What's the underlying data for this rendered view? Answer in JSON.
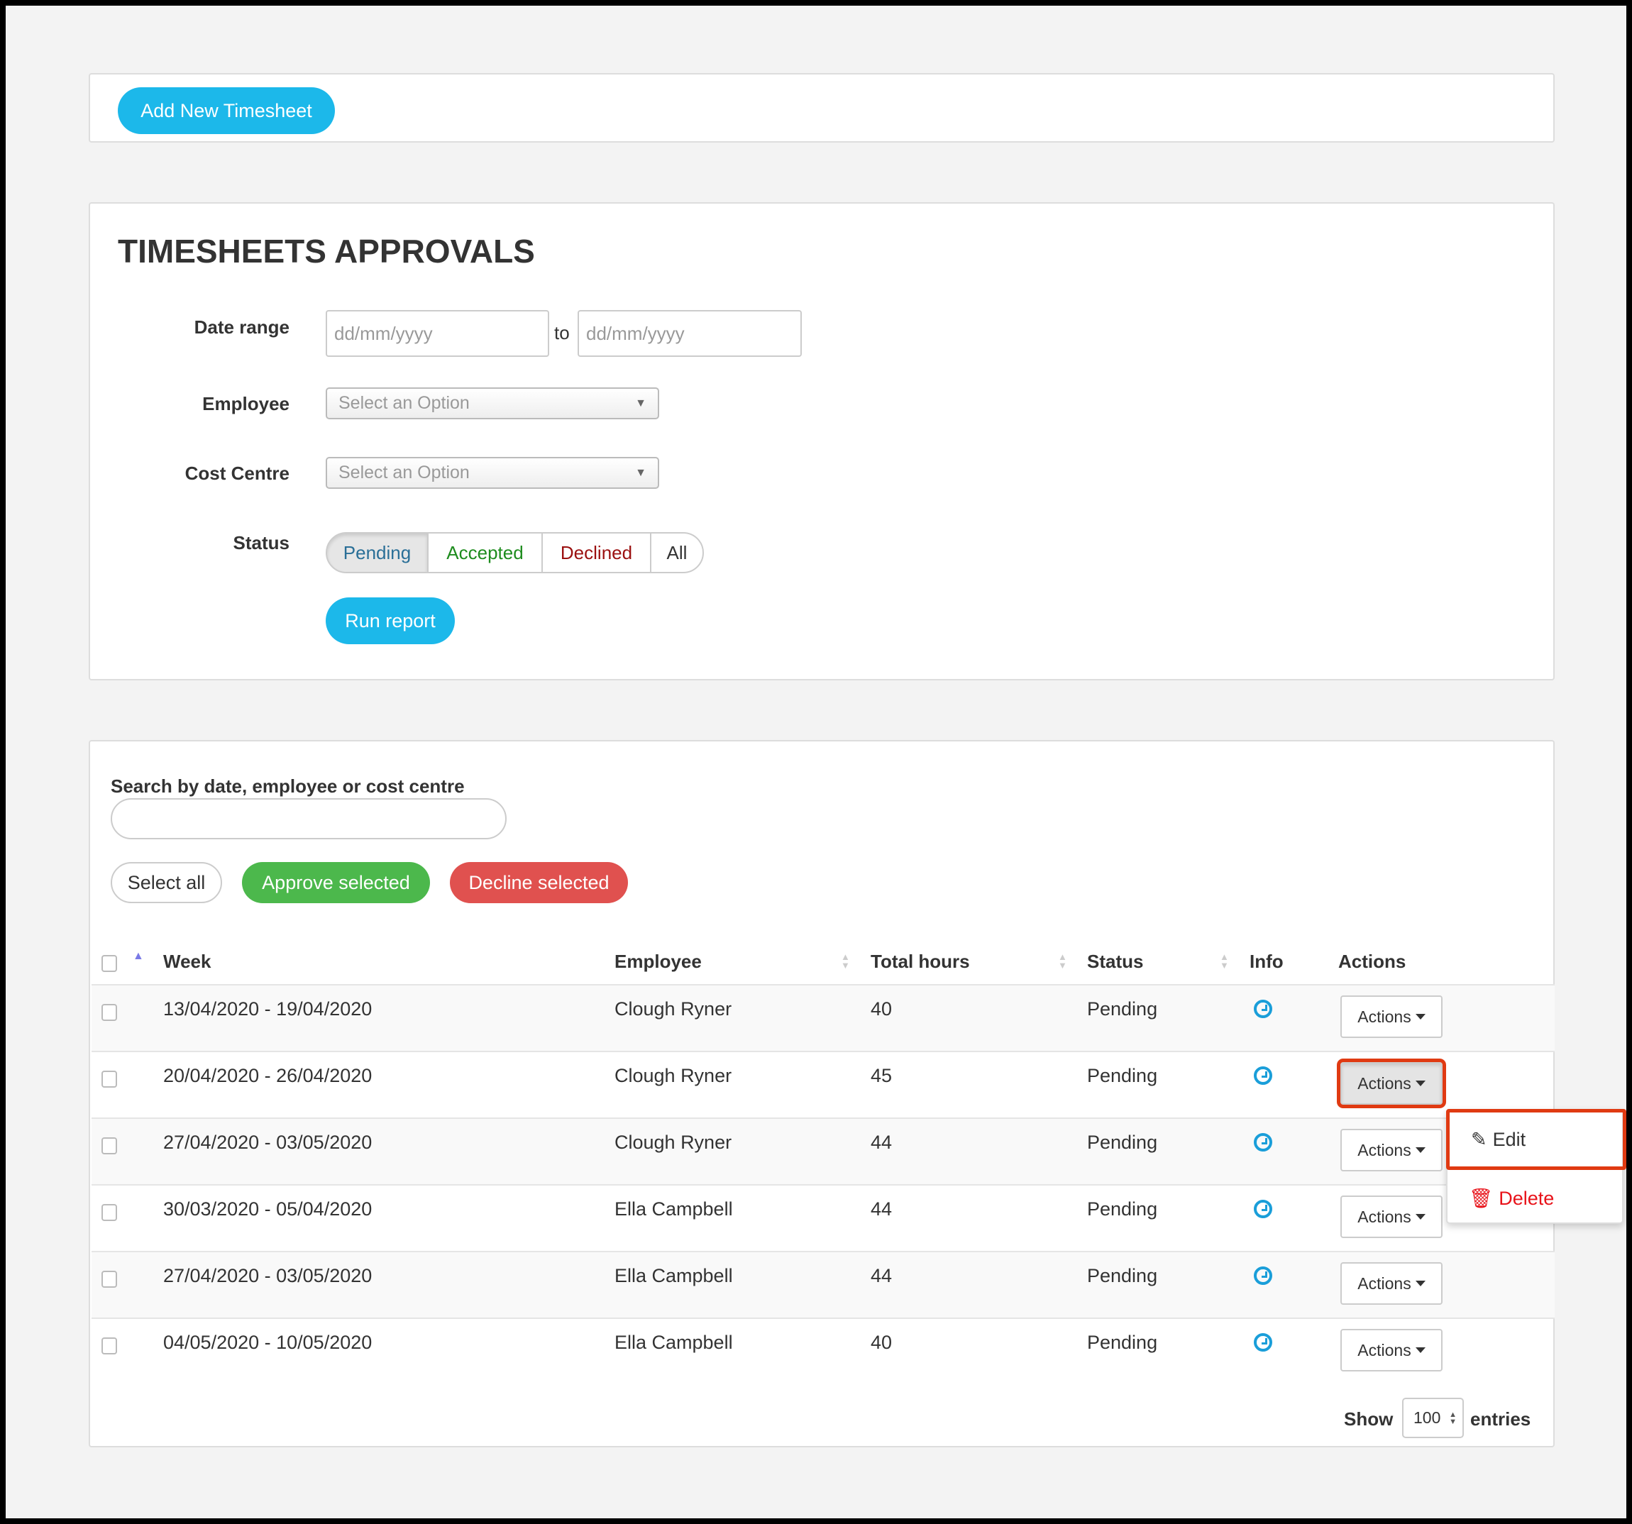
{
  "toolbar": {
    "add_label": "Add New Timesheet"
  },
  "filters": {
    "title": "TIMESHEETS APPROVALS",
    "date_range_label": "Date range",
    "date_from_placeholder": "dd/mm/yyyy",
    "to_label": "to",
    "date_to_placeholder": "dd/mm/yyyy",
    "employee_label": "Employee",
    "employee_value": "Select an Option",
    "cost_centre_label": "Cost Centre",
    "cost_centre_value": "Select an Option",
    "status_label": "Status",
    "status_options": [
      {
        "label": "Pending",
        "color": "#2a6f97"
      },
      {
        "label": "Accepted",
        "color": "#1e8c1e"
      },
      {
        "label": "Declined",
        "color": "#9b1010"
      },
      {
        "label": "All",
        "color": "#333333"
      }
    ],
    "selected_status": "Pending",
    "run_label": "Run report"
  },
  "results": {
    "search_label": "Search by date, employee or cost centre",
    "search_value": "",
    "select_all_label": "Select all",
    "approve_label": "Approve selected",
    "decline_label": "Decline selected",
    "columns": [
      "Week",
      "Employee",
      "Total hours",
      "Status",
      "Info",
      "Actions"
    ],
    "rows": [
      {
        "week": "13/04/2020 - 19/04/2020",
        "employee": "Clough Ryner",
        "hours": "40",
        "status": "Pending",
        "action": "Actions"
      },
      {
        "week": "20/04/2020 - 26/04/2020",
        "employee": "Clough Ryner",
        "hours": "45",
        "status": "Pending",
        "action": "Actions"
      },
      {
        "week": "27/04/2020 - 03/05/2020",
        "employee": "Clough Ryner",
        "hours": "44",
        "status": "Pending",
        "action": "Actions"
      },
      {
        "week": "30/03/2020 - 05/04/2020",
        "employee": "Ella Campbell",
        "hours": "44",
        "status": "Pending",
        "action": "Actions"
      },
      {
        "week": "27/04/2020 - 03/05/2020",
        "employee": "Ella Campbell",
        "hours": "44",
        "status": "Pending",
        "action": "Actions"
      },
      {
        "week": "04/05/2020 - 10/05/2020",
        "employee": "Ella Campbell",
        "hours": "40",
        "status": "Pending",
        "action": "Actions"
      }
    ],
    "menu": {
      "edit_label": "Edit",
      "delete_label": "Delete"
    },
    "show_label": "Show",
    "entries_value": "100",
    "entries_label": "entries"
  },
  "colors": {
    "primary": "#1cb8ea",
    "approve": "#4cb84c",
    "decline": "#e0514f",
    "highlight": "#e03a12"
  }
}
